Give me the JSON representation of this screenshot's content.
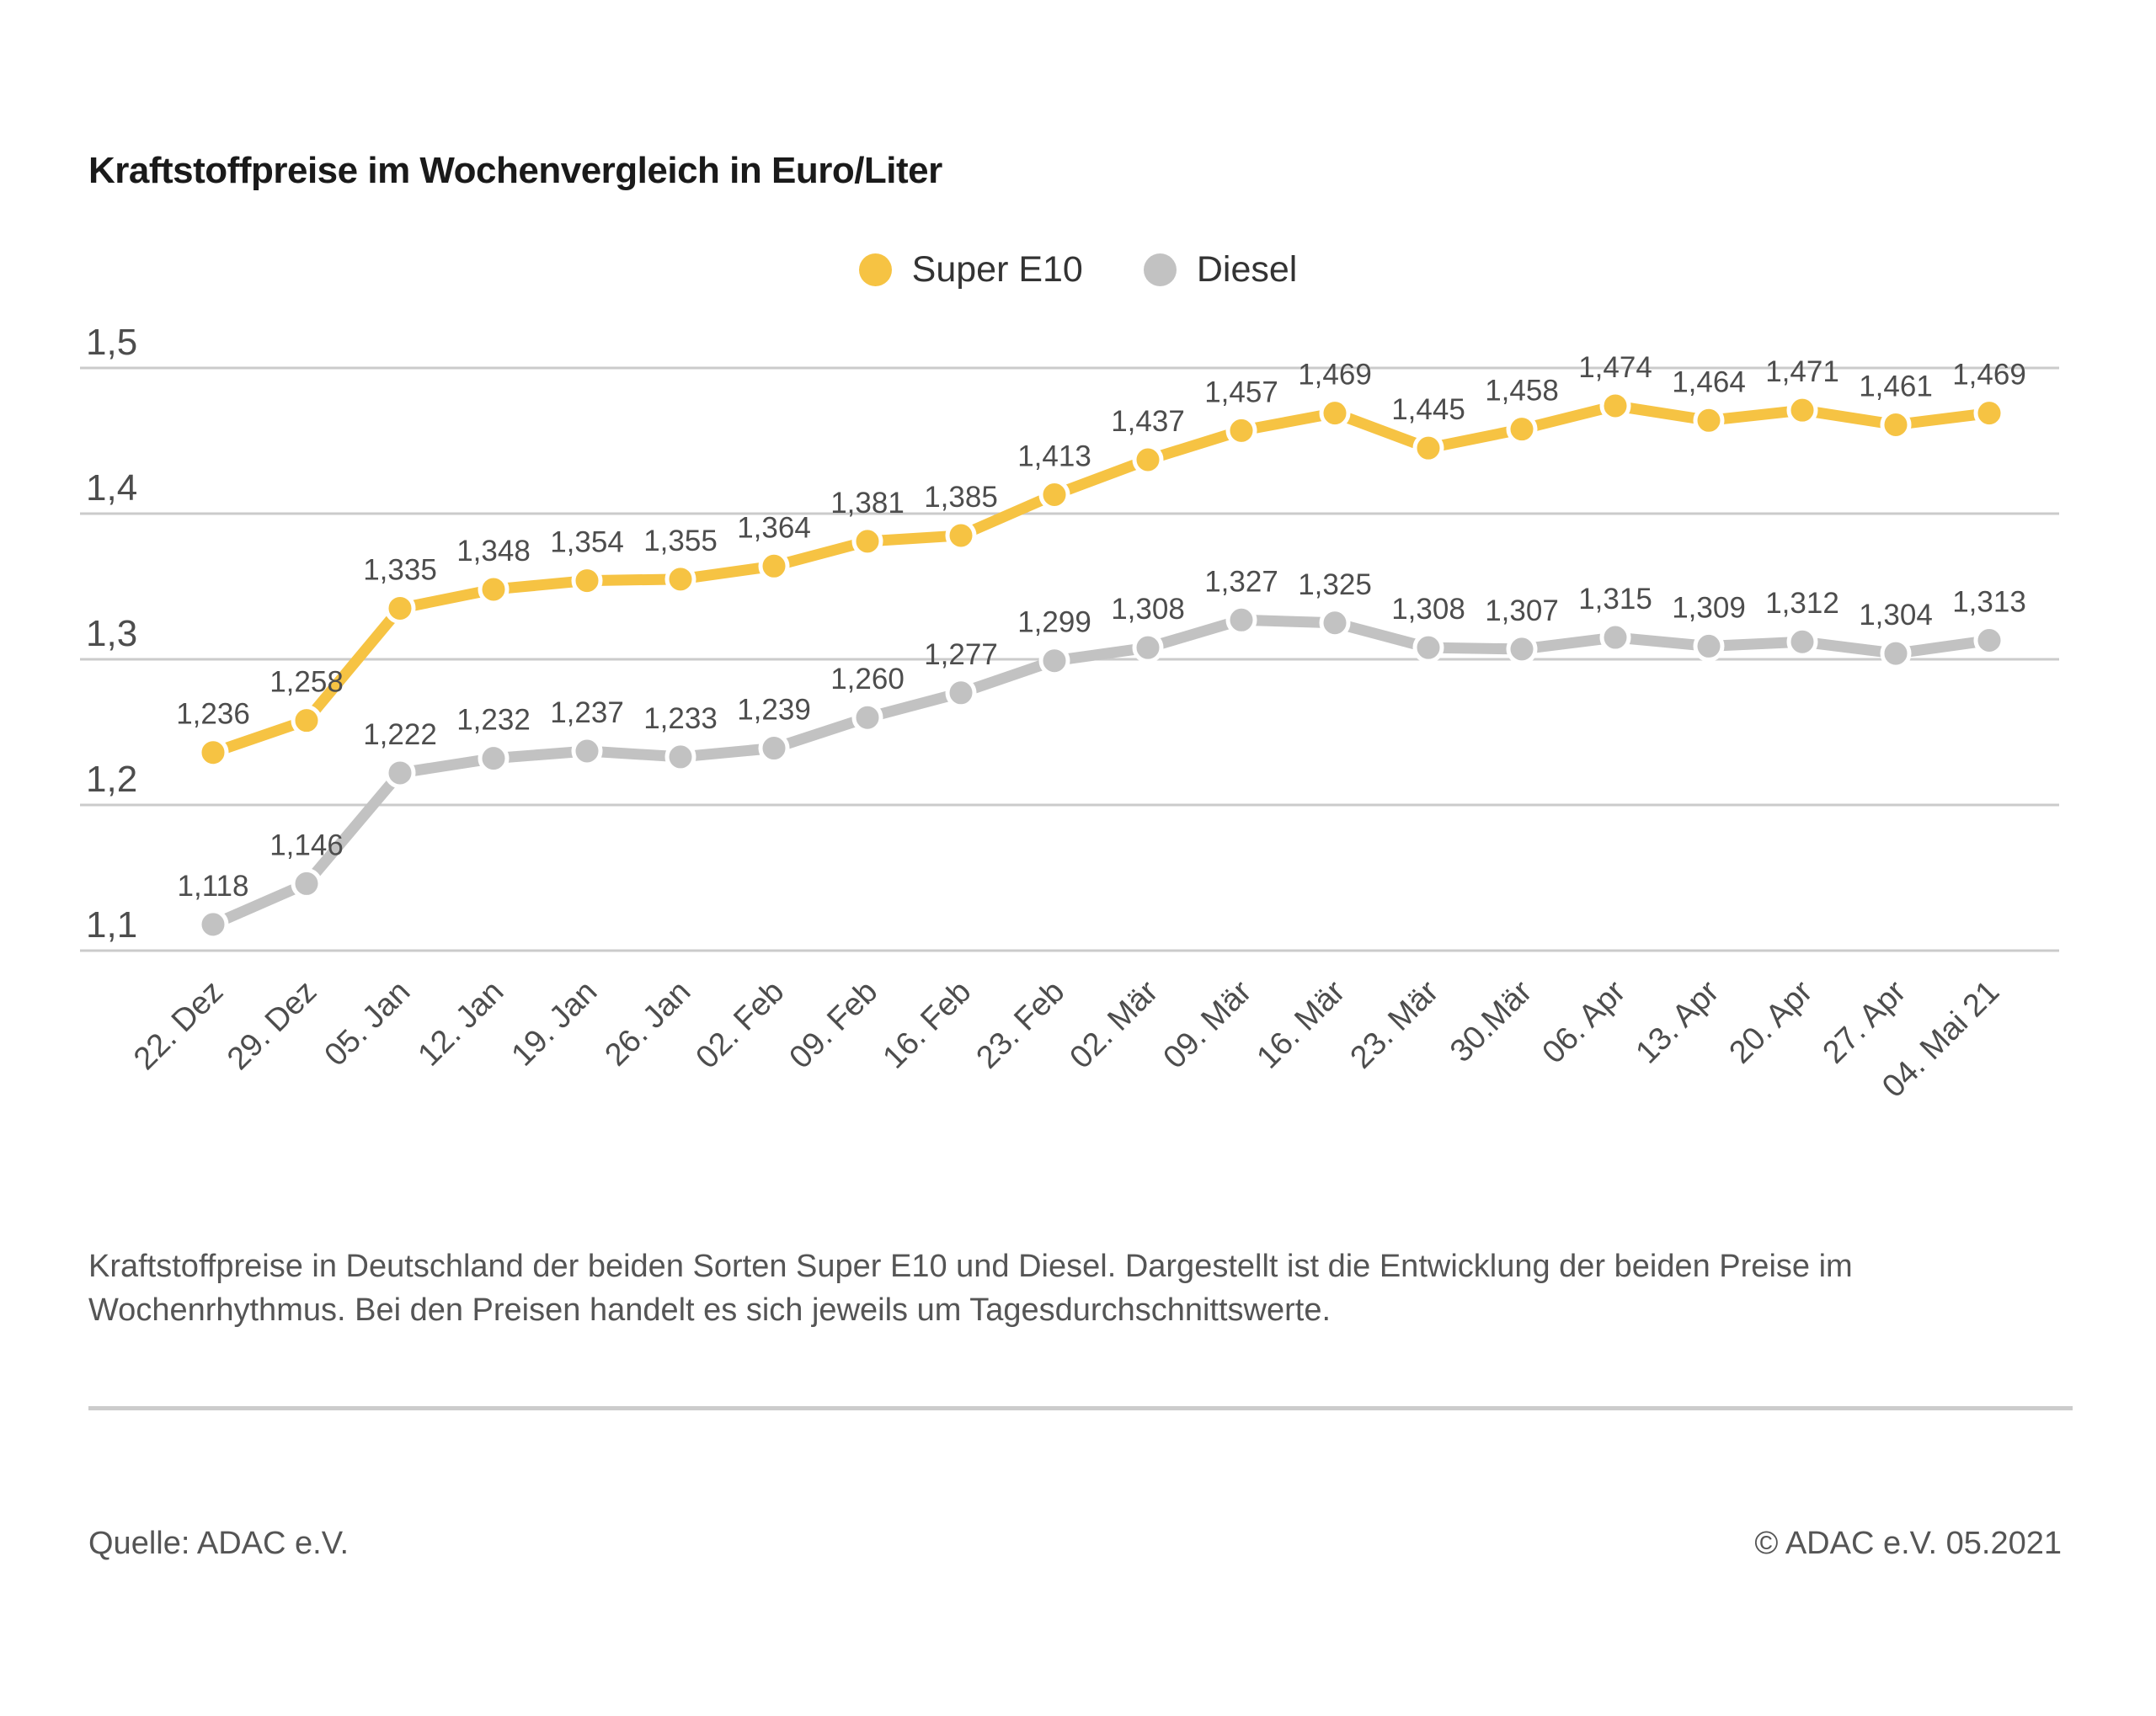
{
  "title": "Kraftstoffpreise im Wochenvergleich in Euro/Liter",
  "caption": "Kraftstoffpreise in Deutschland der beiden Sorten Super E10 und Diesel. Dargestellt ist die Entwicklung der beiden Preise im Wochenrhythmus. Bei den Preisen handelt es sich jeweils um Tagesdurchschnittswerte.",
  "source": "Quelle: ADAC e.V.",
  "copyright": "© ADAC e.V. 05.2021",
  "colors": {
    "super_e10": "#F6C343",
    "diesel": "#C2C2C2",
    "grid": "#CBCBCB",
    "axis_text": "#4D4D4D",
    "label_text": "#4D4D4D"
  },
  "chart_data": {
    "type": "line",
    "title": "Kraftstoffpreise im Wochenvergleich in Euro/Liter",
    "unit": "Euro/Liter",
    "decimal_separator": ",",
    "grid": "horizontal",
    "legend_position": "top-center",
    "ylim": [
      1.05,
      1.52
    ],
    "yticks": [
      1.5,
      1.4,
      1.3,
      1.2,
      1.1
    ],
    "categories": [
      "22. Dez",
      "29. Dez",
      "05. Jan",
      "12. Jan",
      "19. Jan",
      "26. Jan",
      "02. Feb",
      "09. Feb",
      "16. Feb",
      "23. Feb",
      "02. Mär",
      "09. Mär",
      "16. Mär",
      "23. Mär",
      "30.Mär",
      "06. Apr",
      "13. Apr",
      "20. Apr",
      "27. Apr",
      "04. Mai 21"
    ],
    "series": [
      {
        "name": "Super E10",
        "color": "#F6C343",
        "values": [
          1.236,
          1.258,
          1.335,
          1.348,
          1.354,
          1.355,
          1.364,
          1.381,
          1.385,
          1.413,
          1.437,
          1.457,
          1.469,
          1.445,
          1.458,
          1.474,
          1.464,
          1.471,
          1.461,
          1.469
        ]
      },
      {
        "name": "Diesel",
        "color": "#C2C2C2",
        "values": [
          1.118,
          1.146,
          1.222,
          1.232,
          1.237,
          1.233,
          1.239,
          1.26,
          1.277,
          1.299,
          1.308,
          1.327,
          1.325,
          1.308,
          1.307,
          1.315,
          1.309,
          1.312,
          1.304,
          1.313
        ]
      }
    ]
  }
}
